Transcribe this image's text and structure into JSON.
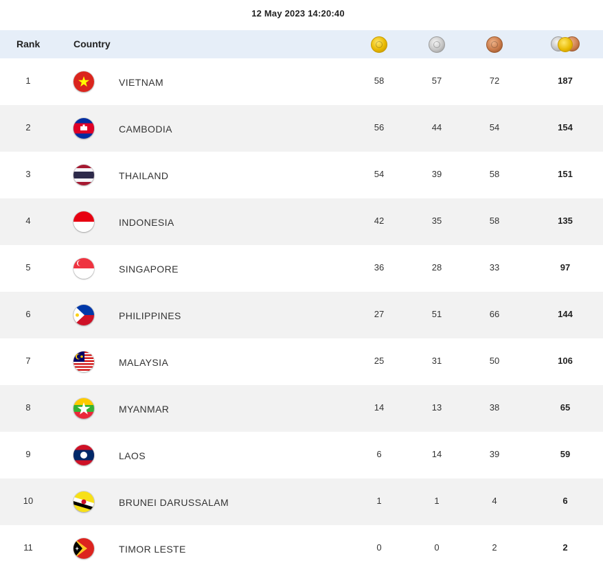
{
  "timestamp": "12 May 2023  14:20:40",
  "header": {
    "rank_label": "Rank",
    "country_label": "Country",
    "gold_icon": "gold-medal-icon",
    "silver_icon": "silver-medal-icon",
    "bronze_icon": "bronze-medal-icon",
    "total_icon": "total-medals-icon"
  },
  "colors": {
    "header_bg": "#e6eef8",
    "row_alt_bg": "#f2f2f2",
    "gold": "#e8b900",
    "silver": "#c7c7c7",
    "bronze": "#c97a4a"
  },
  "rows": [
    {
      "rank": "1",
      "country": "VIETNAM",
      "flag": "vietnam-flag-icon",
      "gold": "58",
      "silver": "57",
      "bronze": "72",
      "total": "187"
    },
    {
      "rank": "2",
      "country": "CAMBODIA",
      "flag": "cambodia-flag-icon",
      "gold": "56",
      "silver": "44",
      "bronze": "54",
      "total": "154"
    },
    {
      "rank": "3",
      "country": "THAILAND",
      "flag": "thailand-flag-icon",
      "gold": "54",
      "silver": "39",
      "bronze": "58",
      "total": "151"
    },
    {
      "rank": "4",
      "country": "INDONESIA",
      "flag": "indonesia-flag-icon",
      "gold": "42",
      "silver": "35",
      "bronze": "58",
      "total": "135"
    },
    {
      "rank": "5",
      "country": "SINGAPORE",
      "flag": "singapore-flag-icon",
      "gold": "36",
      "silver": "28",
      "bronze": "33",
      "total": "97"
    },
    {
      "rank": "6",
      "country": "PHILIPPINES",
      "flag": "philippines-flag-icon",
      "gold": "27",
      "silver": "51",
      "bronze": "66",
      "total": "144"
    },
    {
      "rank": "7",
      "country": "MALAYSIA",
      "flag": "malaysia-flag-icon",
      "gold": "25",
      "silver": "31",
      "bronze": "50",
      "total": "106"
    },
    {
      "rank": "8",
      "country": "MYANMAR",
      "flag": "myanmar-flag-icon",
      "gold": "14",
      "silver": "13",
      "bronze": "38",
      "total": "65"
    },
    {
      "rank": "9",
      "country": "LAOS",
      "flag": "laos-flag-icon",
      "gold": "6",
      "silver": "14",
      "bronze": "39",
      "total": "59"
    },
    {
      "rank": "10",
      "country": "BRUNEI DARUSSALAM",
      "flag": "brunei-flag-icon",
      "gold": "1",
      "silver": "1",
      "bronze": "4",
      "total": "6"
    },
    {
      "rank": "11",
      "country": "TIMOR LESTE",
      "flag": "timor-leste-flag-icon",
      "gold": "0",
      "silver": "0",
      "bronze": "2",
      "total": "2"
    }
  ]
}
